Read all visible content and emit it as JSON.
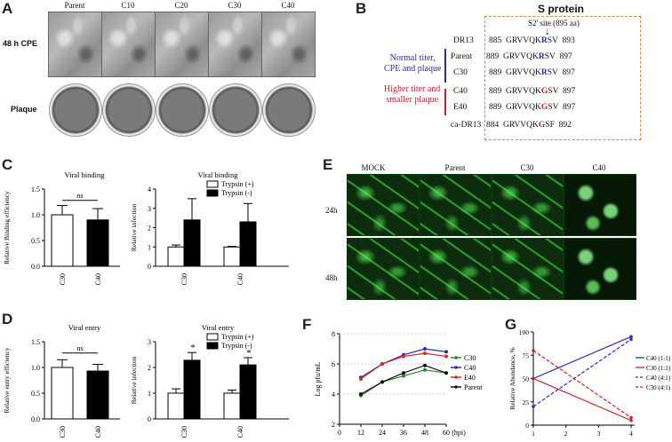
{
  "panels": {
    "A": "A",
    "B": "B",
    "C": "C",
    "D": "D",
    "E": "E",
    "F": "F",
    "G": "G"
  },
  "panelA": {
    "columns": [
      "Parent",
      "C10",
      "C20",
      "C30",
      "C40"
    ],
    "rows": [
      "48 h CPE",
      "Plaque"
    ]
  },
  "panelB": {
    "title": "S protein",
    "site": "S2' site (895 aa)",
    "group1": [
      "Normal titer,",
      "CPE and plaque"
    ],
    "group2": [
      "Higher titer and",
      "smaller plaque"
    ],
    "rows": [
      {
        "name": "DR13",
        "start": "885",
        "pre": "GRVVQK",
        "mid": "R",
        "post": "SV",
        "end": "893",
        "mid_color": "#1f2fb0"
      },
      {
        "name": "Parent",
        "start": "889",
        "pre": "GRVVQK",
        "mid": "R",
        "post": "SV",
        "end": "897",
        "mid_color": "#1f2fb0"
      },
      {
        "name": "C30",
        "start": "889",
        "pre": "GRVVQK",
        "mid": "R",
        "post": "SV",
        "end": "897",
        "mid_color": "#1f2fb0"
      },
      {
        "name": "C40",
        "start": "889",
        "pre": "GRVVQK",
        "mid": "G",
        "post": "SV",
        "end": "897",
        "mid_color": "#c0252a"
      },
      {
        "name": "E40",
        "start": "889",
        "pre": "GRVVQK",
        "mid": "G",
        "post": "SV",
        "end": "897",
        "mid_color": "#c0252a"
      },
      {
        "name": "ca-DR13",
        "start": "884",
        "pre": "GRVVQK",
        "mid": "G",
        "post": "SF",
        "end": "892",
        "mid_color": "#c0252a"
      }
    ]
  },
  "panelE": {
    "columns": [
      "MOCK",
      "Parent",
      "C30",
      "C40"
    ],
    "rows": [
      "24h",
      "48h"
    ]
  },
  "chart_data": [
    {
      "id": "C-left",
      "type": "bar",
      "title": "Viral binding",
      "ylabel": "Relative Binding efficiency",
      "ylim": [
        0,
        1.5
      ],
      "yticks": [
        "0.0",
        "0.5",
        "1.0",
        "1.5"
      ],
      "categories": [
        "C30",
        "C40"
      ],
      "values": [
        1.0,
        0.9
      ],
      "errors": [
        0.18,
        0.22
      ],
      "fills": [
        "#ffffff",
        "#000000"
      ],
      "annotation": "ns"
    },
    {
      "id": "C-right",
      "type": "bar",
      "title": "Viral binding",
      "ylabel": "Relative infection",
      "ylim": [
        0,
        4
      ],
      "yticks": [
        "0",
        "1",
        "2",
        "3",
        "4"
      ],
      "categories": [
        "C30",
        "C40"
      ],
      "series": [
        {
          "name": "Trypsin (+)",
          "values": [
            1.0,
            1.0
          ],
          "errors": [
            0.1,
            0.03
          ],
          "fill": "#ffffff"
        },
        {
          "name": "Trypsin (-)",
          "values": [
            2.4,
            2.3
          ],
          "errors": [
            1.1,
            0.95
          ],
          "fill": "#000000"
        }
      ]
    },
    {
      "id": "D-left",
      "type": "bar",
      "title": "Viral entry",
      "ylabel": "Relative entry efficiency",
      "ylim": [
        0,
        1.5
      ],
      "yticks": [
        "0.0",
        "0.5",
        "1.0",
        "1.5"
      ],
      "categories": [
        "C30",
        "C40"
      ],
      "values": [
        1.0,
        0.93
      ],
      "errors": [
        0.15,
        0.13
      ],
      "fills": [
        "#ffffff",
        "#000000"
      ],
      "annotation": "ns"
    },
    {
      "id": "D-right",
      "type": "bar",
      "title": "Viral entry",
      "ylabel": "Relative infection",
      "ylim": [
        0,
        3
      ],
      "yticks": [
        "0",
        "1",
        "2",
        "3"
      ],
      "categories": [
        "C30",
        "C40"
      ],
      "series": [
        {
          "name": "Trypsin (+)",
          "values": [
            1.0,
            1.0
          ],
          "errors": [
            0.17,
            0.12
          ],
          "fill": "#ffffff"
        },
        {
          "name": "Trypsin (-)",
          "values": [
            2.28,
            2.1
          ],
          "errors": [
            0.3,
            0.28
          ],
          "fill": "#000000"
        }
      ],
      "markers": [
        "*",
        "*"
      ]
    },
    {
      "id": "F",
      "type": "line",
      "ylabel": "Log pfu/mL",
      "xlabel": "(hpi)",
      "x": [
        12,
        24,
        36,
        48,
        60
      ],
      "xlim": [
        0,
        60
      ],
      "xticks": [
        "0",
        "12",
        "24",
        "36",
        "48",
        "60"
      ],
      "ylim": [
        2,
        8
      ],
      "yticks": [
        "2",
        "4",
        "6",
        "8"
      ],
      "series": [
        {
          "name": "C30",
          "color": "#2a8a2a",
          "values": [
            3.9,
            4.8,
            5.2,
            5.6,
            5.4
          ]
        },
        {
          "name": "C40",
          "color": "#2a2ac0",
          "values": [
            5.1,
            6.0,
            6.6,
            7.0,
            6.8
          ]
        },
        {
          "name": "E40",
          "color": "#d03020",
          "values": [
            5.0,
            6.0,
            6.5,
            6.7,
            6.5
          ]
        },
        {
          "name": "Parent",
          "color": "#111111",
          "values": [
            4.0,
            4.8,
            5.4,
            5.9,
            5.4
          ]
        }
      ]
    },
    {
      "id": "G",
      "type": "line",
      "ylabel": "Relative Abundance, %",
      "x": [
        1,
        4
      ],
      "xlim": [
        1,
        4
      ],
      "xticks": [
        "1",
        "2",
        "3",
        "4"
      ],
      "ylim": [
        0,
        100
      ],
      "yticks": [
        "0",
        "25",
        "50",
        "75",
        "100"
      ],
      "series": [
        {
          "name": "C40 (1:1)",
          "color": "#2a2ac0",
          "dash": false,
          "values": [
            50,
            95
          ]
        },
        {
          "name": "C30 (1:1)",
          "color": "#d02020",
          "dash": false,
          "values": [
            50,
            5
          ]
        },
        {
          "name": "C40 (4:1)",
          "color": "#2a2ac0",
          "dash": true,
          "values": [
            20,
            92
          ]
        },
        {
          "name": "C30 (4:1)",
          "color": "#d02020",
          "dash": true,
          "values": [
            80,
            8
          ]
        }
      ]
    }
  ]
}
